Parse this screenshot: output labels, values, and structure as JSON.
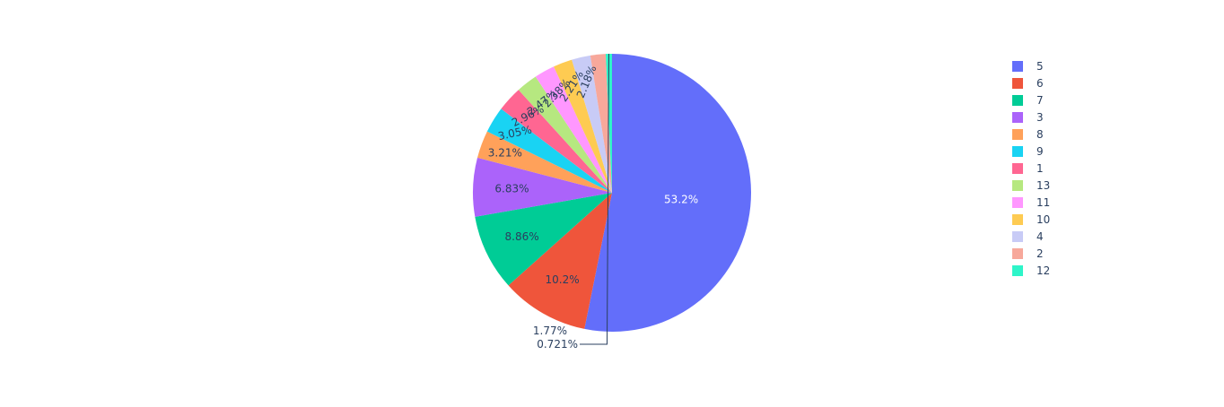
{
  "chart_data": {
    "type": "pie",
    "direction": "clockwise",
    "sort": "descending",
    "legend_placement": "top-right",
    "text_info": "percent",
    "slices": [
      {
        "label": "5",
        "percent": 53.2,
        "percent_label": "53.2%",
        "color": "#636efa"
      },
      {
        "label": "6",
        "percent": 10.2,
        "percent_label": "10.2%",
        "color": "#EF553B"
      },
      {
        "label": "7",
        "percent": 8.86,
        "percent_label": "8.86%",
        "color": "#00cc96"
      },
      {
        "label": "3",
        "percent": 6.83,
        "percent_label": "6.83%",
        "color": "#ab63fa"
      },
      {
        "label": "8",
        "percent": 3.21,
        "percent_label": "3.21%",
        "color": "#FFA15A"
      },
      {
        "label": "9",
        "percent": 3.05,
        "percent_label": "3.05%",
        "color": "#19d3f3"
      },
      {
        "label": "1",
        "percent": 2.96,
        "percent_label": "2.96%",
        "color": "#FF6692"
      },
      {
        "label": "13",
        "percent": 2.47,
        "percent_label": "2.47%",
        "color": "#B6E880"
      },
      {
        "label": "11",
        "percent": 2.38,
        "percent_label": "2.38%",
        "color": "#FF97FF"
      },
      {
        "label": "10",
        "percent": 2.21,
        "percent_label": "2.21%",
        "color": "#FECB52"
      },
      {
        "label": "4",
        "percent": 2.18,
        "percent_label": "2.18%",
        "color": "#c8cbf6"
      },
      {
        "label": "2",
        "percent": 1.77,
        "percent_label": "1.77%",
        "color": "#f7a89b"
      },
      {
        "label": "12",
        "percent": 0.721,
        "percent_label": "0.721%",
        "color": "#2ef5c9"
      }
    ]
  }
}
